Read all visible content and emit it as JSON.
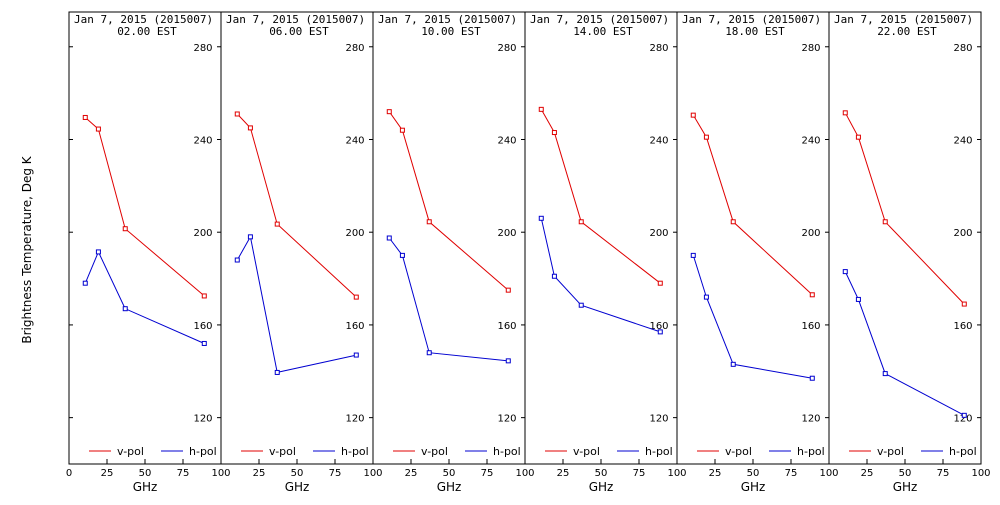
{
  "figure": {
    "ylabel": "Brightness Temperature, Deg K",
    "xlabel": "GHz"
  },
  "colors": {
    "v_pol": "#e00000",
    "h_pol": "#0000d0",
    "frame": "#000000",
    "background": "#ffffff"
  },
  "chart_data": [
    {
      "type": "line",
      "title": "Jan  7, 2015 (2015007)",
      "subtitle": "02.00 EST",
      "xlabel": "GHz",
      "ylabel": "Brightness Temperature, Deg K",
      "xlim": [
        0,
        100
      ],
      "ylim": [
        100,
        295
      ],
      "xticks": [
        0,
        25,
        50,
        75,
        100
      ],
      "xtick_labels": [
        "0",
        "25",
        "50",
        "75",
        "100"
      ],
      "yticks": [
        120,
        160,
        200,
        240,
        280
      ],
      "x": [
        10.7,
        19.35,
        37.0,
        89.0
      ],
      "legend": [
        "v-pol",
        "h-pol"
      ],
      "legend_position": "bottom",
      "series": [
        {
          "name": "v-pol",
          "values": [
            249.5,
            244.5,
            201.5,
            172.5
          ]
        },
        {
          "name": "h-pol",
          "values": [
            178.0,
            191.5,
            167.0,
            152.0
          ]
        }
      ]
    },
    {
      "type": "line",
      "title": "Jan  7, 2015 (2015007)",
      "subtitle": "06.00 EST",
      "xlabel": "GHz",
      "xlim": [
        0,
        100
      ],
      "ylim": [
        100,
        295
      ],
      "xticks": [
        25,
        50,
        75,
        100
      ],
      "xtick_labels": [
        "25",
        "50",
        "75",
        "100"
      ],
      "yticks": [
        120,
        160,
        200,
        240,
        280
      ],
      "x": [
        10.7,
        19.35,
        37.0,
        89.0
      ],
      "legend": [
        "v-pol",
        "h-pol"
      ],
      "legend_position": "bottom",
      "series": [
        {
          "name": "v-pol",
          "values": [
            251.0,
            245.0,
            203.5,
            172.0
          ]
        },
        {
          "name": "h-pol",
          "values": [
            188.0,
            198.0,
            139.5,
            147.0
          ]
        }
      ]
    },
    {
      "type": "line",
      "title": "Jan  7, 2015 (2015007)",
      "subtitle": "10.00 EST",
      "xlabel": "GHz",
      "xlim": [
        0,
        100
      ],
      "ylim": [
        100,
        295
      ],
      "xticks": [
        25,
        50,
        75,
        100
      ],
      "xtick_labels": [
        "25",
        "50",
        "75",
        "100"
      ],
      "yticks": [
        120,
        160,
        200,
        240,
        280
      ],
      "x": [
        10.7,
        19.35,
        37.0,
        89.0
      ],
      "legend": [
        "v-pol",
        "h-pol"
      ],
      "legend_position": "bottom",
      "series": [
        {
          "name": "v-pol",
          "values": [
            252.0,
            244.0,
            204.5,
            175.0
          ]
        },
        {
          "name": "h-pol",
          "values": [
            197.5,
            190.0,
            148.0,
            144.5
          ]
        }
      ]
    },
    {
      "type": "line",
      "title": "Jan  7, 2015 (2015007)",
      "subtitle": "14.00 EST",
      "xlabel": "GHz",
      "xlim": [
        0,
        100
      ],
      "ylim": [
        100,
        295
      ],
      "xticks": [
        25,
        50,
        75,
        100
      ],
      "xtick_labels": [
        "25",
        "50",
        "75",
        "100"
      ],
      "yticks": [
        120,
        160,
        200,
        240,
        280
      ],
      "x": [
        10.7,
        19.35,
        37.0,
        89.0
      ],
      "legend": [
        "v-pol",
        "h-pol"
      ],
      "legend_position": "bottom",
      "series": [
        {
          "name": "v-pol",
          "values": [
            253.0,
            243.0,
            204.5,
            178.0
          ]
        },
        {
          "name": "h-pol",
          "values": [
            206.0,
            181.0,
            168.5,
            157.0
          ]
        }
      ]
    },
    {
      "type": "line",
      "title": "Jan  7, 2015 (2015007)",
      "subtitle": "18.00 EST",
      "xlabel": "GHz",
      "xlim": [
        0,
        100
      ],
      "ylim": [
        100,
        295
      ],
      "xticks": [
        25,
        50,
        75,
        100
      ],
      "xtick_labels": [
        "25",
        "50",
        "75",
        "100"
      ],
      "yticks": [
        120,
        160,
        200,
        240,
        280
      ],
      "x": [
        10.7,
        19.35,
        37.0,
        89.0
      ],
      "legend": [
        "v-pol",
        "h-pol"
      ],
      "legend_position": "bottom",
      "series": [
        {
          "name": "v-pol",
          "values": [
            250.5,
            241.0,
            204.5,
            173.0
          ]
        },
        {
          "name": "h-pol",
          "values": [
            190.0,
            172.0,
            143.0,
            137.0
          ]
        }
      ]
    },
    {
      "type": "line",
      "title": "Jan  7, 2015 (2015007)",
      "subtitle": "22.00 EST",
      "xlabel": "GHz",
      "xlim": [
        0,
        100
      ],
      "ylim": [
        100,
        295
      ],
      "xticks": [
        25,
        50,
        75,
        100
      ],
      "xtick_labels": [
        "25",
        "50",
        "75",
        "100"
      ],
      "yticks": [
        120,
        160,
        200,
        240,
        280
      ],
      "x": [
        10.7,
        19.35,
        37.0,
        89.0
      ],
      "legend": [
        "v-pol",
        "h-pol"
      ],
      "legend_position": "bottom",
      "series": [
        {
          "name": "v-pol",
          "values": [
            251.5,
            241.0,
            204.5,
            169.0
          ]
        },
        {
          "name": "h-pol",
          "values": [
            183.0,
            171.0,
            139.0,
            121.0
          ]
        }
      ]
    }
  ]
}
